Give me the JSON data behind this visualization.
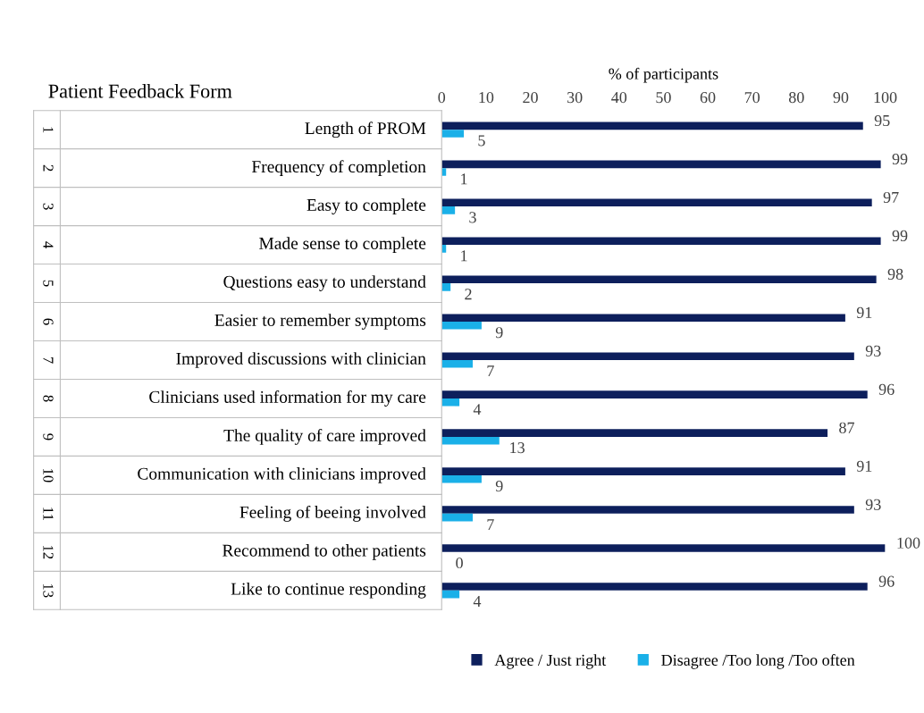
{
  "chart_data": {
    "type": "bar",
    "orientation": "horizontal",
    "title": "Patient Feedback Form",
    "xlabel": "% of participants",
    "categories": [
      "Length of PROM",
      "Frequency of completion",
      "Easy to complete",
      "Made sense to complete",
      "Questions easy to understand",
      "Easier to remember symptoms",
      "Improved discussions with clinician",
      "Clinicians used information for my care",
      "The quality of care improved",
      "Communication with clinicians improved",
      "Feeling of beeing involved",
      "Recommend to other patients",
      "Like to continue responding"
    ],
    "series": [
      {
        "name": "Agree / Just right",
        "color": "#0d1f5c",
        "values": [
          95,
          99,
          97,
          99,
          98,
          91,
          93,
          96,
          87,
          91,
          93,
          100,
          96
        ]
      },
      {
        "name": "Disagree /Too long /Too often",
        "color": "#1ab0e8",
        "values": [
          5,
          1,
          3,
          1,
          2,
          9,
          7,
          4,
          13,
          9,
          7,
          0,
          4
        ]
      }
    ],
    "xlim": [
      0,
      100
    ],
    "xticks": [
      0,
      10,
      20,
      30,
      40,
      50,
      60,
      70,
      80,
      90,
      100
    ],
    "data_labels": true,
    "grid": false,
    "legend": "bottom",
    "annotations": [
      "1",
      "2",
      "3",
      "4",
      "5",
      "6",
      "7",
      "8",
      "9",
      "10",
      "11",
      "12",
      "13"
    ]
  }
}
